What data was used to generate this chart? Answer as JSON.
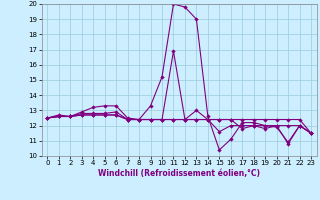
{
  "xlabel": "Windchill (Refroidissement éolien,°C)",
  "bg_color": "#cceeff",
  "line_color": "#800080",
  "grid_color": "#99ccdd",
  "xlim": [
    -0.5,
    23.5
  ],
  "ylim": [
    10,
    20
  ],
  "xticks": [
    0,
    1,
    2,
    3,
    4,
    5,
    6,
    7,
    8,
    9,
    10,
    11,
    12,
    13,
    14,
    15,
    16,
    17,
    18,
    19,
    20,
    21,
    22,
    23
  ],
  "yticks": [
    10,
    11,
    12,
    13,
    14,
    15,
    16,
    17,
    18,
    19,
    20
  ],
  "series": [
    [
      12.5,
      12.7,
      12.6,
      12.9,
      13.2,
      13.3,
      13.3,
      12.5,
      12.4,
      13.3,
      15.2,
      20.0,
      19.8,
      19.0,
      12.6,
      10.4,
      11.1,
      12.2,
      12.2,
      12.0,
      11.9,
      10.9,
      12.0,
      11.5
    ],
    [
      12.5,
      12.6,
      12.6,
      12.8,
      12.8,
      12.8,
      12.9,
      12.4,
      12.4,
      12.4,
      12.4,
      16.9,
      12.4,
      12.4,
      12.4,
      11.6,
      12.0,
      12.0,
      12.0,
      12.0,
      12.0,
      12.0,
      12.0,
      11.5
    ],
    [
      12.5,
      12.6,
      12.6,
      12.7,
      12.7,
      12.7,
      12.7,
      12.4,
      12.4,
      12.4,
      12.4,
      12.4,
      12.4,
      12.4,
      12.4,
      12.4,
      12.4,
      12.4,
      12.4,
      12.4,
      12.4,
      12.4,
      12.4,
      11.5
    ],
    [
      12.5,
      12.6,
      12.6,
      12.7,
      12.7,
      12.7,
      12.7,
      12.4,
      12.4,
      12.4,
      12.4,
      12.4,
      12.4,
      13.0,
      12.4,
      12.4,
      12.4,
      11.8,
      12.0,
      11.8,
      12.0,
      10.8,
      12.0,
      11.5
    ]
  ],
  "tick_fontsize": 5,
  "xlabel_fontsize": 5.5,
  "linewidth": 0.8,
  "markersize": 2.2
}
